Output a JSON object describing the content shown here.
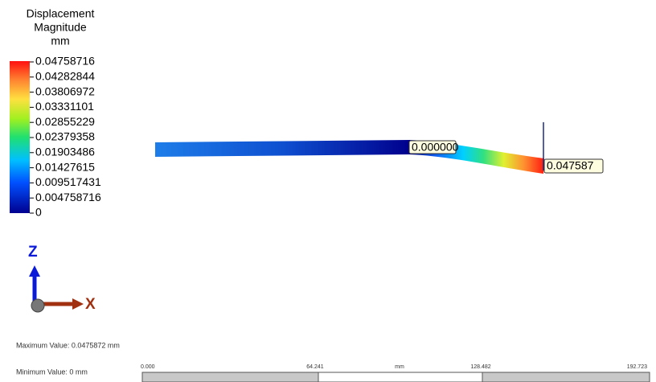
{
  "legend": {
    "title": [
      "Displacement",
      "Magnitude",
      "mm"
    ],
    "labels": [
      "0.04758716",
      "0.04282844",
      "0.03806972",
      "0.03331101",
      "0.02855229",
      "0.02379358",
      "0.01903486",
      "0.01427615",
      "0.009517431",
      "0.004758716",
      "0"
    ]
  },
  "probes": [
    "0.000000",
    "0.047587"
  ],
  "triad": {
    "z": "Z",
    "x": "X"
  },
  "summary": {
    "max": "Maximum Value: 0.0475872 mm",
    "min": "Minimum Value: 0 mm"
  },
  "scale_bar": {
    "labels": [
      "0.000",
      "64.241",
      "mm",
      "128.482",
      "192.723"
    ]
  }
}
